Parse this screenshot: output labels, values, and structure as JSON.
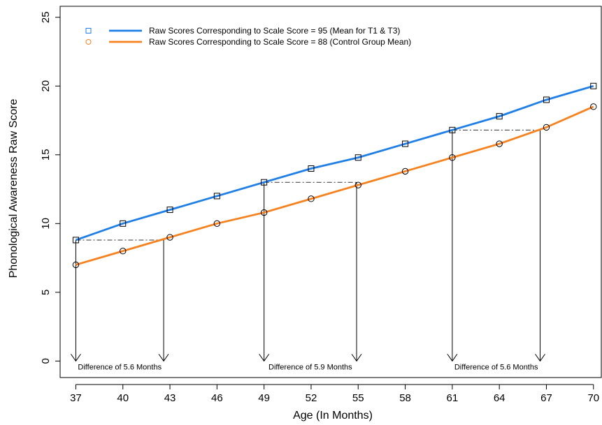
{
  "chart_data": {
    "type": "line",
    "xlabel": "Age (In Months)",
    "ylabel": "Phonological Awareness Raw Score",
    "x_ticks": [
      37,
      40,
      43,
      46,
      49,
      52,
      55,
      58,
      61,
      64,
      67,
      70
    ],
    "y_ticks": [
      0,
      5,
      10,
      15,
      20,
      25
    ],
    "xlim": [
      36,
      70.5
    ],
    "ylim": [
      -1.2,
      25.8
    ],
    "grid": false,
    "legend_position": "top-left",
    "series": [
      {
        "name": "Raw Scores Corresponding to Scale Score = 95 (Mean for T1 & T3)",
        "color": "#1f7fe6",
        "marker": "square",
        "x": [
          37,
          40,
          43,
          46,
          49,
          52,
          55,
          58,
          61,
          64,
          67,
          70
        ],
        "y": [
          8.8,
          10.0,
          11.0,
          12.0,
          13.0,
          14.0,
          14.8,
          15.8,
          16.8,
          17.8,
          19.0,
          20.0
        ]
      },
      {
        "name": "Raw Scores Corresponding to Scale Score = 88 (Control Group Mean)",
        "color": "#f5821f",
        "marker": "circle",
        "x": [
          37,
          40,
          43,
          46,
          49,
          52,
          55,
          58,
          61,
          64,
          67,
          70
        ],
        "y": [
          7.0,
          8.0,
          9.0,
          10.0,
          10.8,
          11.8,
          12.8,
          13.8,
          14.8,
          15.8,
          17.0,
          18.5
        ]
      }
    ],
    "annotations": [
      {
        "x_start": 37.0,
        "x_end": 42.6,
        "y": 8.8,
        "label_prefix": "Difference of",
        "value": "5.6",
        "unit": "Months"
      },
      {
        "x_start": 49.0,
        "x_end": 54.9,
        "y": 13.0,
        "label_prefix": "Difference of",
        "value": "5.9",
        "unit": "Months"
      },
      {
        "x_start": 61.0,
        "x_end": 66.6,
        "y": 16.8,
        "label_prefix": "Difference of",
        "value": "5.6",
        "unit": "Months"
      }
    ]
  }
}
